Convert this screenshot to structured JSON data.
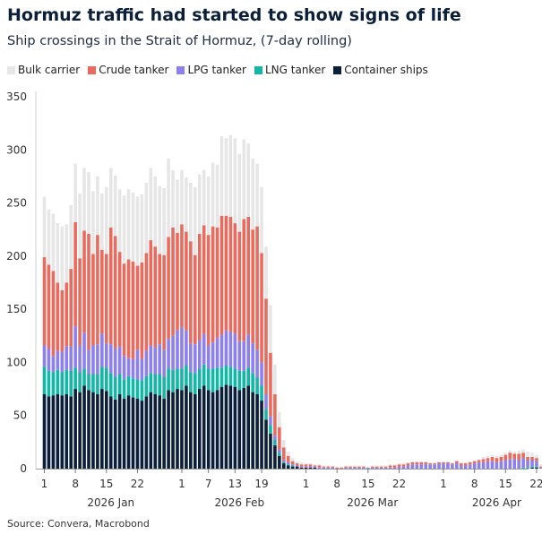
{
  "title": "Hormuz traffic had started to show signs of life",
  "subtitle": "Ship crossings in the Strait of Hormuz, (7-day rolling)",
  "source": "Source: Convera, Macrobond",
  "chart_data": {
    "type": "bar",
    "stacked": true,
    "ylim": [
      0,
      350
    ],
    "yticks": [
      0,
      50,
      100,
      150,
      200,
      250,
      300,
      350
    ],
    "grid": false,
    "legend_position": "top-left",
    "x_start_date": "2026-01-01",
    "x_end_date": "2026-04-22",
    "day_tick_labels": [
      {
        "label": "1",
        "date": "2026-01-01"
      },
      {
        "label": "8",
        "date": "2026-01-08"
      },
      {
        "label": "15",
        "date": "2026-01-15"
      },
      {
        "label": "22",
        "date": "2026-01-22"
      },
      {
        "label": "1",
        "date": "2026-02-01"
      },
      {
        "label": "7",
        "date": "2026-02-07"
      },
      {
        "label": "13",
        "date": "2026-02-13"
      },
      {
        "label": "19",
        "date": "2026-02-19"
      },
      {
        "label": "1",
        "date": "2026-03-01"
      },
      {
        "label": "8",
        "date": "2026-03-08"
      },
      {
        "label": "15",
        "date": "2026-03-15"
      },
      {
        "label": "22",
        "date": "2026-03-22"
      },
      {
        "label": "1",
        "date": "2026-04-01"
      },
      {
        "label": "8",
        "date": "2026-04-08"
      },
      {
        "label": "15",
        "date": "2026-04-15"
      },
      {
        "label": "22",
        "date": "2026-04-22"
      }
    ],
    "month_labels": [
      {
        "label": "2026 Jan",
        "date": "2026-01-16"
      },
      {
        "label": "2026 Feb",
        "date": "2026-02-14"
      },
      {
        "label": "2026 Mar",
        "date": "2026-03-16"
      },
      {
        "label": "2026 Apr",
        "date": "2026-04-13"
      }
    ],
    "series": [
      {
        "name": "Container ships",
        "color": "#0b1f3a",
        "values": [
          70,
          68,
          69,
          70,
          69,
          70,
          68,
          75,
          72,
          78,
          74,
          72,
          70,
          75,
          73,
          68,
          65,
          70,
          66,
          69,
          67,
          66,
          64,
          68,
          72,
          70,
          69,
          66,
          74,
          72,
          75,
          74,
          78,
          72,
          70,
          75,
          78,
          74,
          72,
          74,
          77,
          79,
          78,
          77,
          74,
          76,
          78,
          72,
          70,
          64,
          46,
          33,
          22,
          12,
          5,
          3,
          2,
          2,
          1,
          1,
          1,
          1,
          0,
          0,
          0,
          0,
          0,
          0,
          0,
          0,
          0,
          0,
          0,
          0,
          0,
          0,
          0,
          0,
          0,
          0,
          0,
          0,
          0,
          0,
          0,
          0,
          0,
          0,
          0,
          0,
          0,
          0,
          0,
          0,
          0,
          0,
          0,
          0,
          0,
          0,
          0,
          0,
          0,
          0,
          0,
          0,
          0,
          0,
          0,
          0,
          1,
          1,
          0
        ]
      },
      {
        "name": "LNG tanker",
        "color": "#13b7a6",
        "values": [
          26,
          24,
          22,
          23,
          22,
          23,
          24,
          20,
          19,
          16,
          15,
          17,
          19,
          21,
          22,
          22,
          21,
          19,
          18,
          18,
          18,
          18,
          19,
          19,
          18,
          19,
          20,
          20,
          20,
          21,
          19,
          20,
          19,
          19,
          20,
          19,
          20,
          20,
          22,
          21,
          18,
          18,
          18,
          17,
          18,
          16,
          17,
          18,
          16,
          14,
          10,
          8,
          5,
          3,
          1,
          1,
          1,
          0,
          0,
          0,
          0,
          0,
          0,
          0,
          0,
          0,
          0,
          0,
          0,
          0,
          0,
          0,
          0,
          0,
          0,
          0,
          0,
          0,
          0,
          0,
          0,
          0,
          0,
          0,
          0,
          0,
          0,
          0,
          0,
          0,
          0,
          0,
          0,
          0,
          0,
          0,
          0,
          0,
          0,
          0,
          0,
          0,
          0,
          0,
          0,
          0,
          0,
          0,
          1,
          1,
          1,
          1,
          0
        ]
      },
      {
        "name": "LPG tanker",
        "color": "#8b80ee",
        "values": [
          20,
          21,
          15,
          18,
          19,
          22,
          23,
          39,
          25,
          34,
          23,
          27,
          28,
          31,
          23,
          27,
          27,
          26,
          22,
          17,
          18,
          28,
          20,
          24,
          26,
          25,
          28,
          26,
          28,
          32,
          36,
          39,
          33,
          27,
          27,
          27,
          29,
          22,
          25,
          28,
          31,
          33,
          33,
          33,
          28,
          28,
          31,
          28,
          26,
          22,
          14,
          8,
          4,
          3,
          2,
          2,
          1,
          1,
          1,
          1,
          1,
          1,
          1,
          1,
          1,
          1,
          0,
          0,
          1,
          1,
          1,
          1,
          1,
          1,
          1,
          1,
          1,
          1,
          1,
          1,
          2,
          2,
          3,
          4,
          4,
          4,
          4,
          4,
          4,
          5,
          5,
          5,
          4,
          5,
          3,
          3,
          4,
          5,
          6,
          6,
          7,
          7,
          6,
          7,
          8,
          9,
          9,
          8,
          9,
          7,
          6,
          5,
          1
        ]
      },
      {
        "name": "Crude tanker",
        "color": "#ea6b5e",
        "values": [
          83,
          79,
          80,
          64,
          58,
          60,
          73,
          98,
          82,
          96,
          109,
          86,
          103,
          79,
          84,
          110,
          106,
          89,
          87,
          93,
          92,
          79,
          91,
          92,
          99,
          95,
          85,
          89,
          96,
          102,
          92,
          97,
          93,
          96,
          84,
          100,
          102,
          104,
          109,
          104,
          112,
          108,
          108,
          104,
          103,
          115,
          111,
          107,
          116,
          103,
          90,
          60,
          39,
          21,
          12,
          6,
          3,
          2,
          2,
          2,
          2,
          1,
          2,
          1,
          1,
          1,
          1,
          1,
          1,
          1,
          1,
          1,
          1,
          0,
          1,
          1,
          1,
          1,
          2,
          2,
          2,
          2,
          2,
          2,
          2,
          2,
          2,
          1,
          1,
          1,
          1,
          1,
          1,
          2,
          2,
          2,
          2,
          2,
          2,
          3,
          3,
          4,
          4,
          4,
          5,
          6,
          5,
          6,
          5,
          3,
          3,
          3,
          1
        ]
      },
      {
        "name": "Bulk carrier",
        "color": "#e6e6e6",
        "values": [
          57,
          52,
          54,
          56,
          60,
          55,
          60,
          55,
          61,
          59,
          58,
          59,
          55,
          53,
          63,
          56,
          57,
          59,
          64,
          66,
          65,
          65,
          64,
          66,
          68,
          66,
          64,
          63,
          74,
          54,
          50,
          51,
          51,
          55,
          64,
          56,
          52,
          55,
          60,
          59,
          75,
          73,
          77,
          80,
          73,
          75,
          69,
          67,
          59,
          62,
          49,
          45,
          28,
          14,
          7,
          4,
          3,
          2,
          2,
          1,
          1,
          1,
          1,
          1,
          1,
          1,
          1,
          1,
          1,
          1,
          1,
          1,
          1,
          1,
          1,
          1,
          1,
          1,
          1,
          1,
          1,
          1,
          1,
          1,
          1,
          1,
          1,
          1,
          1,
          1,
          1,
          1,
          1,
          1,
          1,
          1,
          1,
          1,
          1,
          2,
          2,
          2,
          2,
          2,
          2,
          2,
          2,
          3,
          3,
          5,
          4,
          3,
          2
        ]
      }
    ]
  }
}
